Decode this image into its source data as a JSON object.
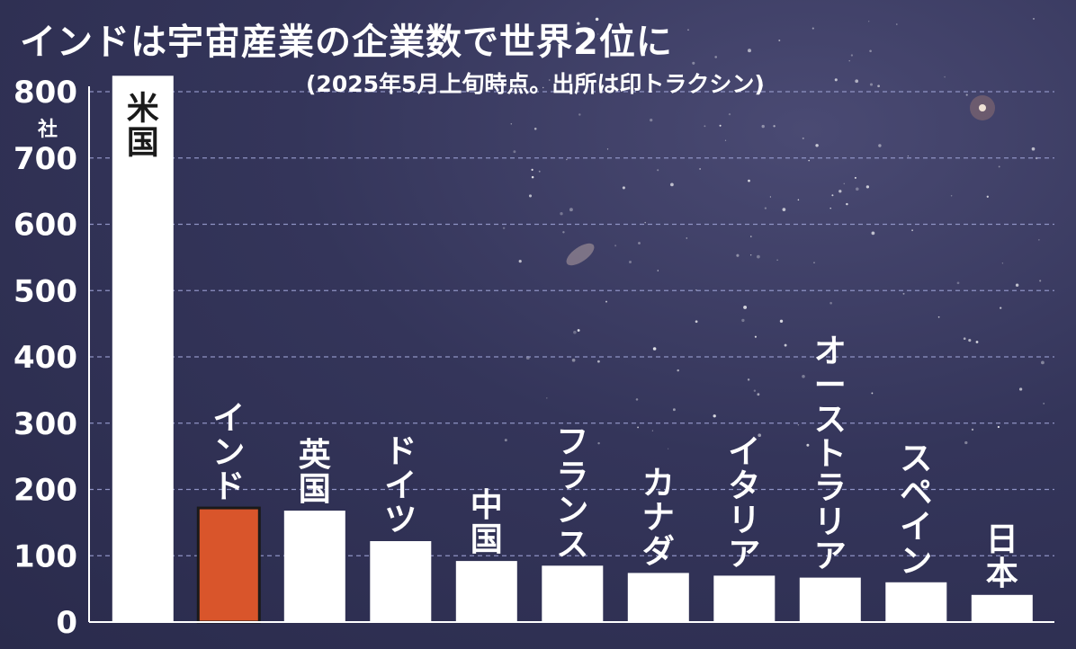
{
  "chart_data": {
    "type": "bar",
    "title": "インドは宇宙産業の企業数で世界2位に",
    "subtitle": "(2025年5月上旬時点。出所は印トラクシン)",
    "unit": "社",
    "categories": [
      "米国",
      "インド",
      "英国",
      "ドイツ",
      "中国",
      "フランス",
      "カナダ",
      "イタリア",
      "オーストラリア",
      "スペイン",
      "日本"
    ],
    "values": [
      824,
      172,
      168,
      122,
      92,
      85,
      74,
      70,
      67,
      60,
      41
    ],
    "highlight_index": 1,
    "ylim": [
      0,
      800
    ],
    "yticks": [
      0,
      100,
      200,
      300,
      400,
      500,
      600,
      700,
      800
    ],
    "grid": true,
    "colors": {
      "bar": "#ffffff",
      "highlight": "#d9552b",
      "highlight_border": "#1a1a1a",
      "label": "#ffffff",
      "grid": "#8f93c4"
    }
  }
}
